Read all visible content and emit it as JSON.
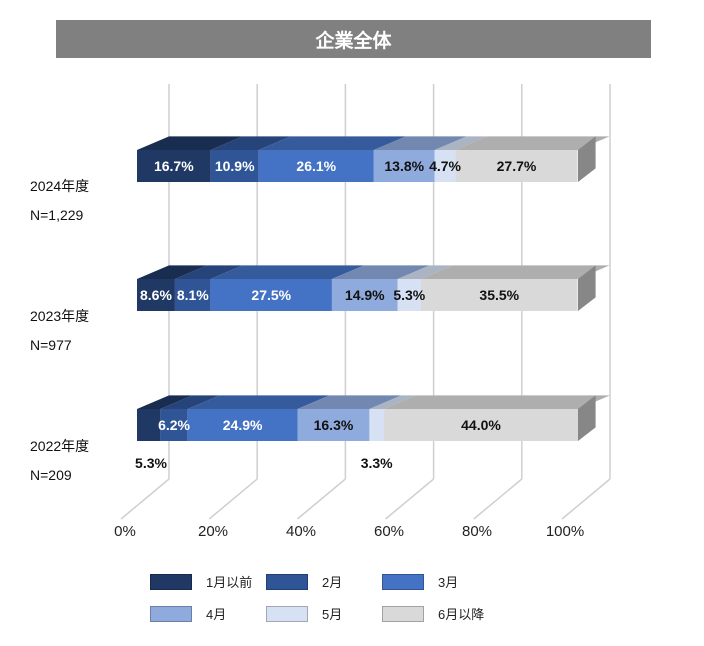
{
  "chart_data": {
    "type": "bar",
    "orientation": "horizontal",
    "stacked": true,
    "title": "企業全体",
    "xlim": [
      0,
      100
    ],
    "x_ticks": [
      "0%",
      "20%",
      "40%",
      "60%",
      "80%",
      "100%"
    ],
    "categories": [
      {
        "year": "2024年度",
        "n": "N=1,229"
      },
      {
        "year": "2023年度",
        "n": "N=977"
      },
      {
        "year": "2022年度",
        "n": "N=209"
      }
    ],
    "series": [
      {
        "name": "1月以前",
        "color": "#1f3864",
        "values": [
          16.7,
          8.6,
          5.3
        ],
        "labels": [
          "16.7%",
          "8.6%",
          "5.3%"
        ]
      },
      {
        "name": "2月",
        "color": "#2f5597",
        "values": [
          10.9,
          8.1,
          6.2
        ],
        "labels": [
          "10.9%",
          "8.1%",
          "6.2%"
        ]
      },
      {
        "name": "3月",
        "color": "#4472c4",
        "values": [
          26.1,
          27.5,
          24.9
        ],
        "labels": [
          "26.1%",
          "27.5%",
          "24.9%"
        ]
      },
      {
        "name": "4月",
        "color": "#8faadc",
        "values": [
          13.8,
          14.9,
          16.3
        ],
        "labels": [
          "13.8%",
          "14.9%",
          "16.3%"
        ]
      },
      {
        "name": "5月",
        "color": "#d6e1f3",
        "values": [
          4.7,
          5.3,
          3.3
        ],
        "labels": [
          "4.7%",
          "5.3%",
          "3.3%"
        ]
      },
      {
        "name": "6月以降",
        "color": "#d9d9d9",
        "values": [
          27.7,
          35.5,
          44.0
        ],
        "labels": [
          "27.7%",
          "35.5%",
          "44.0%"
        ]
      }
    ],
    "grid": true,
    "legend_position": "bottom"
  }
}
